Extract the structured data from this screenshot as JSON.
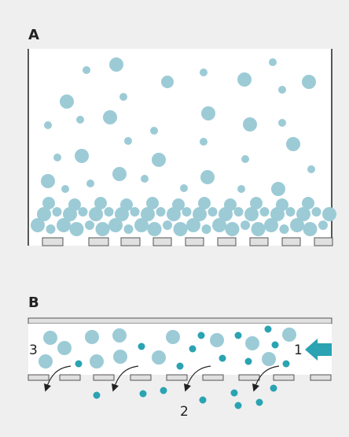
{
  "panel_a": {
    "label": "A"
  },
  "panel_b": {
    "label": "B",
    "markers": [
      "1",
      "2",
      "3"
    ]
  }
}
